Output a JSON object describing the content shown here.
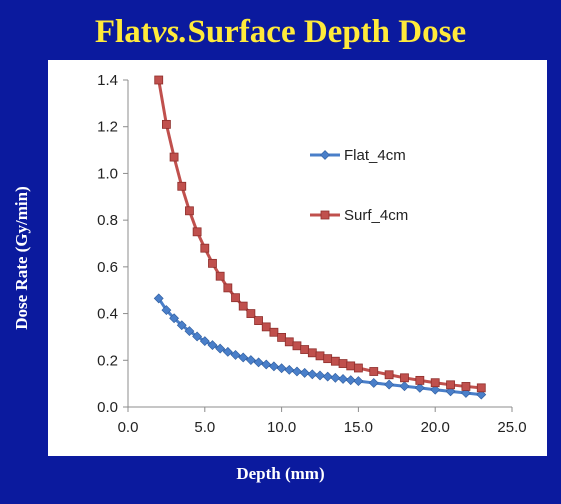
{
  "title": {
    "main_a": "Flat ",
    "main_vs": "vs.",
    "main_b": " Surface Depth Dose"
  },
  "chart_data": {
    "type": "line",
    "xlabel": "Depth (mm)",
    "ylabel": "Dose Rate (Gy/min)",
    "xlim": [
      0,
      25
    ],
    "ylim": [
      0,
      1.4
    ],
    "xticks": [
      "0.0",
      "5.0",
      "10.0",
      "15.0",
      "20.0",
      "25.0"
    ],
    "yticks": [
      "0.0",
      "0.2",
      "0.4",
      "0.6",
      "0.8",
      "1.0",
      "1.2",
      "1.4"
    ],
    "grid": false,
    "legend_position": "right",
    "series": [
      {
        "name": "Flat_4cm",
        "color": "#4a7fc9",
        "marker": "diamond",
        "x": [
          2.0,
          2.5,
          3.0,
          3.5,
          4.0,
          4.5,
          5.0,
          5.5,
          6.0,
          6.5,
          7.0,
          7.5,
          8.0,
          8.5,
          9.0,
          9.5,
          10.0,
          10.5,
          11.0,
          11.5,
          12.0,
          12.5,
          13.0,
          13.5,
          14.0,
          14.5,
          15.0,
          16.0,
          17.0,
          18.0,
          19.0,
          20.0,
          21.0,
          22.0,
          23.0
        ],
        "y": [
          0.465,
          0.415,
          0.38,
          0.35,
          0.325,
          0.302,
          0.282,
          0.265,
          0.25,
          0.236,
          0.223,
          0.212,
          0.201,
          0.191,
          0.182,
          0.174,
          0.166,
          0.159,
          0.152,
          0.146,
          0.14,
          0.135,
          0.13,
          0.125,
          0.12,
          0.115,
          0.111,
          0.103,
          0.096,
          0.089,
          0.082,
          0.074,
          0.067,
          0.06,
          0.053
        ]
      },
      {
        "name": "Surf_4cm",
        "color": "#c0504d",
        "marker": "square",
        "x": [
          2.0,
          2.5,
          3.0,
          3.5,
          4.0,
          4.5,
          5.0,
          5.5,
          6.0,
          6.5,
          7.0,
          7.5,
          8.0,
          8.5,
          9.0,
          9.5,
          10.0,
          10.5,
          11.0,
          11.5,
          12.0,
          12.5,
          13.0,
          13.5,
          14.0,
          14.5,
          15.0,
          16.0,
          17.0,
          18.0,
          19.0,
          20.0,
          21.0,
          22.0,
          23.0
        ],
        "y": [
          1.4,
          1.21,
          1.07,
          0.945,
          0.84,
          0.75,
          0.68,
          0.615,
          0.56,
          0.51,
          0.468,
          0.432,
          0.4,
          0.37,
          0.343,
          0.32,
          0.298,
          0.279,
          0.262,
          0.246,
          0.232,
          0.219,
          0.207,
          0.196,
          0.186,
          0.176,
          0.167,
          0.152,
          0.138,
          0.125,
          0.114,
          0.104,
          0.095,
          0.088,
          0.082
        ]
      }
    ]
  }
}
